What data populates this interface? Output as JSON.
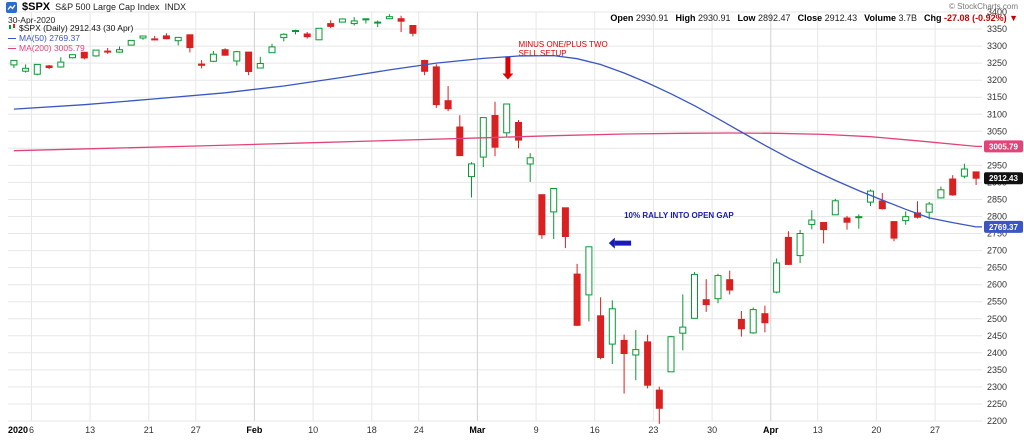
{
  "header": {
    "symbol": "$SPX",
    "name": "S&P 500 Large Cap Index",
    "exchange": "INDX",
    "date": "30-Apr-2020",
    "copyright": "© StockCharts.com",
    "quote": {
      "open_label": "Open",
      "open": "2930.91",
      "high_label": "High",
      "high": "2930.91",
      "low_label": "Low",
      "low": "2892.47",
      "close_label": "Close",
      "close": "2912.43",
      "volume_label": "Volume",
      "volume": "3.7B",
      "chg_label": "Chg",
      "chg": "-27.08 (-0.92%) ▼"
    }
  },
  "legend": {
    "series": "$SPX (Daily) 2912.43 (30 Apr)",
    "ma50": "MA(50) 2769.37",
    "ma200": "MA(200) 3005.79"
  },
  "chart_data": {
    "type": "candlestick",
    "ylim": [
      2200,
      3400
    ],
    "y_tick_step": 50,
    "grid": true,
    "x_axis_labels": [
      {
        "index": 0,
        "text": "2020",
        "bold": true
      },
      {
        "index": 2,
        "text": "6"
      },
      {
        "index": 7,
        "text": "13"
      },
      {
        "index": 12,
        "text": "21"
      },
      {
        "index": 16,
        "text": "27"
      },
      {
        "index": 21,
        "text": "Feb",
        "bold": true
      },
      {
        "index": 26,
        "text": "10"
      },
      {
        "index": 31,
        "text": "18"
      },
      {
        "index": 35,
        "text": "24"
      },
      {
        "index": 40,
        "text": "Mar",
        "bold": true
      },
      {
        "index": 45,
        "text": "9"
      },
      {
        "index": 50,
        "text": "16"
      },
      {
        "index": 55,
        "text": "23"
      },
      {
        "index": 60,
        "text": "30"
      },
      {
        "index": 65,
        "text": "Apr",
        "bold": true
      },
      {
        "index": 69,
        "text": "13"
      },
      {
        "index": 74,
        "text": "20"
      },
      {
        "index": 79,
        "text": "27"
      }
    ],
    "x_gridline_indices": [
      2,
      7,
      12,
      16,
      21,
      26,
      31,
      35,
      40,
      45,
      50,
      55,
      60,
      65,
      69,
      74,
      79
    ],
    "x_month_indices": [
      21,
      40,
      65
    ],
    "columns": [
      "date",
      "open",
      "high",
      "low",
      "close"
    ],
    "candles": [
      [
        "2020-01-02",
        3244.67,
        3258.14,
        3235.53,
        3257.85
      ],
      [
        "2020-01-03",
        3226.36,
        3246.15,
        3222.34,
        3234.85
      ],
      [
        "2020-01-06",
        3217.55,
        3246.84,
        3214.64,
        3246.28
      ],
      [
        "2020-01-07",
        3241.86,
        3244.91,
        3232.43,
        3237.18
      ],
      [
        "2020-01-08",
        3238.59,
        3267.07,
        3236.67,
        3253.05
      ],
      [
        "2020-01-09",
        3266.03,
        3275.58,
        3263.67,
        3274.7
      ],
      [
        "2020-01-10",
        3281.81,
        3282.99,
        3260.86,
        3265.35
      ],
      [
        "2020-01-13",
        3271.13,
        3288.13,
        3268.43,
        3288.13
      ],
      [
        "2020-01-14",
        3285.35,
        3294.25,
        3277.19,
        3283.15
      ],
      [
        "2020-01-15",
        3282.27,
        3298.66,
        3280.69,
        3289.29
      ],
      [
        "2020-01-16",
        3302.97,
        3317.11,
        3302.82,
        3316.81
      ],
      [
        "2020-01-17",
        3323.81,
        3329.88,
        3318.86,
        3329.62
      ],
      [
        "2020-01-21",
        3321.03,
        3329.79,
        3316.61,
        3320.79
      ],
      [
        "2020-01-22",
        3330.02,
        3337.77,
        3320.04,
        3321.75
      ],
      [
        "2020-01-23",
        3315.77,
        3326.88,
        3301.87,
        3325.54
      ],
      [
        "2020-01-24",
        3333.1,
        3333.18,
        3281.53,
        3295.47
      ],
      [
        "2020-01-27",
        3247.16,
        3258.85,
        3234.5,
        3243.63
      ],
      [
        "2020-01-28",
        3255.35,
        3285.78,
        3253.22,
        3276.24
      ],
      [
        "2020-01-29",
        3289.46,
        3293.47,
        3271.89,
        3273.4
      ],
      [
        "2020-01-30",
        3256.45,
        3285.91,
        3242.8,
        3283.66
      ],
      [
        "2020-01-31",
        3282.33,
        3282.33,
        3214.68,
        3225.52
      ],
      [
        "2020-02-03",
        3235.66,
        3268.44,
        3235.66,
        3248.92
      ],
      [
        "2020-02-04",
        3280.61,
        3306.92,
        3280.61,
        3297.59
      ],
      [
        "2020-02-05",
        3324.91,
        3337.58,
        3313.75,
        3334.69
      ],
      [
        "2020-02-06",
        3344.92,
        3347.96,
        3334.39,
        3345.78
      ],
      [
        "2020-02-07",
        3335.54,
        3341.42,
        3322.12,
        3327.71
      ],
      [
        "2020-02-10",
        3318.28,
        3352.26,
        3317.77,
        3352.09
      ],
      [
        "2020-02-11",
        3365.87,
        3375.63,
        3352.72,
        3357.75
      ],
      [
        "2020-02-12",
        3370.5,
        3381.47,
        3369.72,
        3379.45
      ],
      [
        "2020-02-13",
        3365.9,
        3385.09,
        3360.52,
        3373.94
      ],
      [
        "2020-02-14",
        3378.08,
        3380.69,
        3366.15,
        3380.16
      ],
      [
        "2020-02-18",
        3369.04,
        3375.01,
        3355.61,
        3370.29
      ],
      [
        "2020-02-19",
        3380.39,
        3393.52,
        3378.83,
        3386.15
      ],
      [
        "2020-02-20",
        3380.45,
        3389.15,
        3341.02,
        3373.23
      ],
      [
        "2020-02-21",
        3360.5,
        3360.76,
        3328.45,
        3337.75
      ],
      [
        "2020-02-24",
        3257.61,
        3259.81,
        3214.65,
        3225.89
      ],
      [
        "2020-02-25",
        3238.94,
        3246.99,
        3118.77,
        3128.21
      ],
      [
        "2020-02-26",
        3139.9,
        3182.51,
        3108.99,
        3116.39
      ],
      [
        "2020-02-27",
        3062.54,
        3097.07,
        2977.39,
        2978.76
      ],
      [
        "2020-02-28",
        2916.9,
        2959.72,
        2855.84,
        2954.22
      ],
      [
        "2020-03-02",
        2974.28,
        3090.96,
        2945.19,
        3090.23
      ],
      [
        "2020-03-03",
        3096.46,
        3136.72,
        2976.63,
        3003.37
      ],
      [
        "2020-03-04",
        3045.75,
        3130.97,
        3034.38,
        3130.12
      ],
      [
        "2020-03-05",
        3075.7,
        3083.04,
        2999.83,
        3023.94
      ],
      [
        "2020-03-06",
        2954.2,
        2985.93,
        2901.54,
        2972.37
      ],
      [
        "2020-03-09",
        2863.89,
        2863.89,
        2734.43,
        2746.56
      ],
      [
        "2020-03-10",
        2813.48,
        2882.59,
        2734.0,
        2882.23
      ],
      [
        "2020-03-11",
        2825.6,
        2825.6,
        2707.22,
        2741.38
      ],
      [
        "2020-03-12",
        2630.86,
        2660.95,
        2478.86,
        2480.64
      ],
      [
        "2020-03-13",
        2569.99,
        2711.33,
        2492.37,
        2711.02
      ],
      [
        "2020-03-16",
        2508.59,
        2562.98,
        2380.94,
        2386.13
      ],
      [
        "2020-03-17",
        2425.66,
        2553.93,
        2367.04,
        2529.19
      ],
      [
        "2020-03-18",
        2436.5,
        2453.57,
        2280.52,
        2398.1
      ],
      [
        "2020-03-19",
        2393.48,
        2466.97,
        2319.78,
        2409.39
      ],
      [
        "2020-03-20",
        2431.94,
        2453.01,
        2295.56,
        2304.92
      ],
      [
        "2020-03-23",
        2290.71,
        2300.73,
        2191.86,
        2237.4
      ],
      [
        "2020-03-24",
        2344.44,
        2449.71,
        2344.44,
        2447.33
      ],
      [
        "2020-03-25",
        2457.77,
        2571.42,
        2407.53,
        2475.56
      ],
      [
        "2020-03-26",
        2501.29,
        2637.01,
        2500.72,
        2630.07
      ],
      [
        "2020-03-27",
        2555.87,
        2615.91,
        2520.02,
        2541.47
      ],
      [
        "2020-03-30",
        2558.98,
        2631.8,
        2545.28,
        2626.65
      ],
      [
        "2020-03-31",
        2614.69,
        2641.39,
        2571.15,
        2584.59
      ],
      [
        "2020-04-01",
        2498.08,
        2522.75,
        2447.49,
        2470.5
      ],
      [
        "2020-04-02",
        2458.54,
        2533.22,
        2455.79,
        2526.9
      ],
      [
        "2020-04-03",
        2514.92,
        2538.18,
        2459.96,
        2488.65
      ],
      [
        "2020-04-06",
        2578.28,
        2676.85,
        2574.57,
        2663.68
      ],
      [
        "2020-04-07",
        2738.65,
        2756.89,
        2657.67,
        2659.41
      ],
      [
        "2020-04-08",
        2685.0,
        2760.75,
        2663.3,
        2749.98
      ],
      [
        "2020-04-09",
        2776.99,
        2818.57,
        2762.36,
        2789.82
      ],
      [
        "2020-04-13",
        2782.46,
        2782.46,
        2721.17,
        2761.63
      ],
      [
        "2020-04-14",
        2805.1,
        2851.85,
        2805.1,
        2846.06
      ],
      [
        "2020-04-15",
        2795.64,
        2801.88,
        2761.54,
        2783.36
      ],
      [
        "2020-04-16",
        2799.34,
        2806.51,
        2764.32,
        2799.55
      ],
      [
        "2020-04-17",
        2842.43,
        2879.22,
        2830.88,
        2874.56
      ],
      [
        "2020-04-20",
        2845.62,
        2868.98,
        2820.43,
        2823.16
      ],
      [
        "2020-04-21",
        2784.99,
        2785.54,
        2727.1,
        2736.56
      ],
      [
        "2020-04-22",
        2787.89,
        2815.1,
        2775.95,
        2799.31
      ],
      [
        "2020-04-23",
        2810.42,
        2844.9,
        2794.26,
        2797.8
      ],
      [
        "2020-04-24",
        2812.66,
        2842.71,
        2791.76,
        2836.74
      ],
      [
        "2020-04-27",
        2854.65,
        2887.72,
        2852.89,
        2878.48
      ],
      [
        "2020-04-28",
        2909.96,
        2921.15,
        2860.71,
        2863.39
      ],
      [
        "2020-04-29",
        2918.46,
        2954.86,
        2912.16,
        2939.51
      ],
      [
        "2020-04-30",
        2930.91,
        2930.91,
        2892.47,
        2912.43
      ]
    ],
    "ma50": {
      "label": "MA(50)",
      "last": 2769.37,
      "color": "#3a56c4",
      "points": [
        [
          0,
          3115
        ],
        [
          6,
          3128
        ],
        [
          12,
          3145
        ],
        [
          18,
          3163
        ],
        [
          23,
          3183
        ],
        [
          28,
          3208
        ],
        [
          32,
          3230
        ],
        [
          36,
          3250
        ],
        [
          40,
          3264
        ],
        [
          43,
          3271
        ],
        [
          46,
          3272
        ],
        [
          48,
          3263
        ],
        [
          50,
          3246
        ],
        [
          52,
          3221
        ],
        [
          54,
          3192
        ],
        [
          56,
          3160
        ],
        [
          58,
          3125
        ],
        [
          60,
          3087
        ],
        [
          62,
          3048
        ],
        [
          64,
          3009
        ],
        [
          66,
          2972
        ],
        [
          68,
          2938
        ],
        [
          70,
          2906
        ],
        [
          72,
          2876
        ],
        [
          74,
          2848
        ],
        [
          76,
          2821
        ],
        [
          78,
          2796
        ],
        [
          80,
          2782
        ],
        [
          82,
          2769.37
        ]
      ]
    },
    "ma200": {
      "label": "MA(200)",
      "last": 3005.79,
      "color": "#e2447a",
      "points": [
        [
          0,
          2993
        ],
        [
          8,
          3000
        ],
        [
          16,
          3007
        ],
        [
          24,
          3015
        ],
        [
          32,
          3023
        ],
        [
          40,
          3031
        ],
        [
          46,
          3037
        ],
        [
          52,
          3042
        ],
        [
          57,
          3044
        ],
        [
          61,
          3045
        ],
        [
          65,
          3044
        ],
        [
          69,
          3041
        ],
        [
          73,
          3034
        ],
        [
          77,
          3022
        ],
        [
          82,
          3005.79
        ]
      ]
    },
    "price_labels": [
      {
        "value": 3005.79,
        "text": "3005.79",
        "color": "#e2447a"
      },
      {
        "value": 2912.43,
        "text": "2912.43",
        "color": "#111111"
      },
      {
        "value": 2769.37,
        "text": "2769.37",
        "color": "#3a56c4"
      }
    ],
    "annotations": {
      "sell_setup": {
        "lines": [
          "MINUS ONE/PLUS TWO",
          "SELL SETUP"
        ],
        "color": "#e00000",
        "text_index": 43.0,
        "text_value": 3298,
        "arrow": {
          "index": 42.1,
          "value_from": 3268,
          "value_to": 3202,
          "direction": "down"
        }
      },
      "rally": {
        "text": "10% RALLY INTO OPEN GAP",
        "color": "#1a1ab8",
        "text_index": 52.0,
        "text_value": 2796,
        "arrow": {
          "index_tip": 50.7,
          "index_tail": 52.6,
          "value": 2722,
          "direction": "left"
        }
      }
    },
    "colors": {
      "up": "#089932",
      "down": "#d92121",
      "grid": "#e7e7e7",
      "grid_month": "#d2d2d2",
      "axis_text": "#333333",
      "background": "#ffffff"
    }
  }
}
